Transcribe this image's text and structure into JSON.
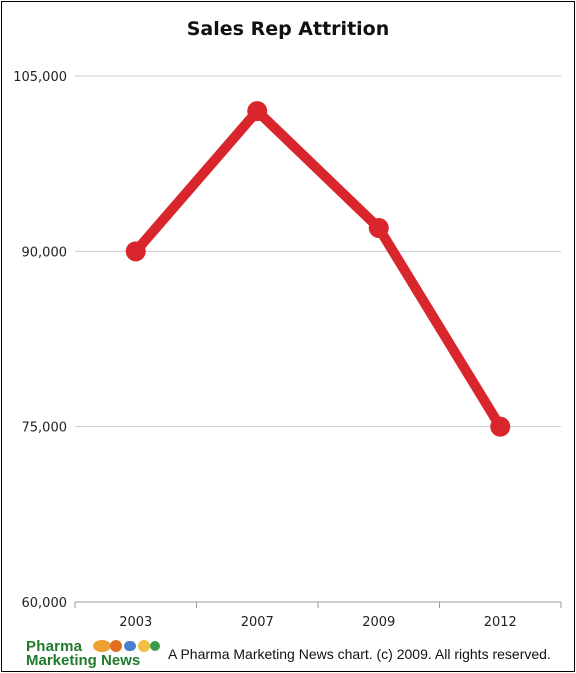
{
  "chart_data": {
    "type": "line",
    "title": "Sales Rep Attrition",
    "xlabel": "",
    "ylabel": "",
    "categories": [
      "2003",
      "2007",
      "2009",
      "2012"
    ],
    "series": [
      {
        "values": [
          90000,
          102000,
          92000,
          75000
        ],
        "color": "#d9262c"
      }
    ],
    "ylim": [
      60000,
      105000
    ],
    "yticks": [
      60000,
      75000,
      90000,
      105000
    ],
    "ytick_labels": [
      "60,000",
      "75,000",
      "90,000",
      "105,000"
    ],
    "grid": true,
    "legend": "none"
  },
  "footer": {
    "logo_line1": "Pharma",
    "logo_line2": "Marketing News",
    "credit": "A Pharma Marketing News chart. (c) 2009. All rights reserved."
  },
  "colors": {
    "line": "#d9262c",
    "grid": "#cccccc",
    "logo_green": "#1f7a2e"
  }
}
